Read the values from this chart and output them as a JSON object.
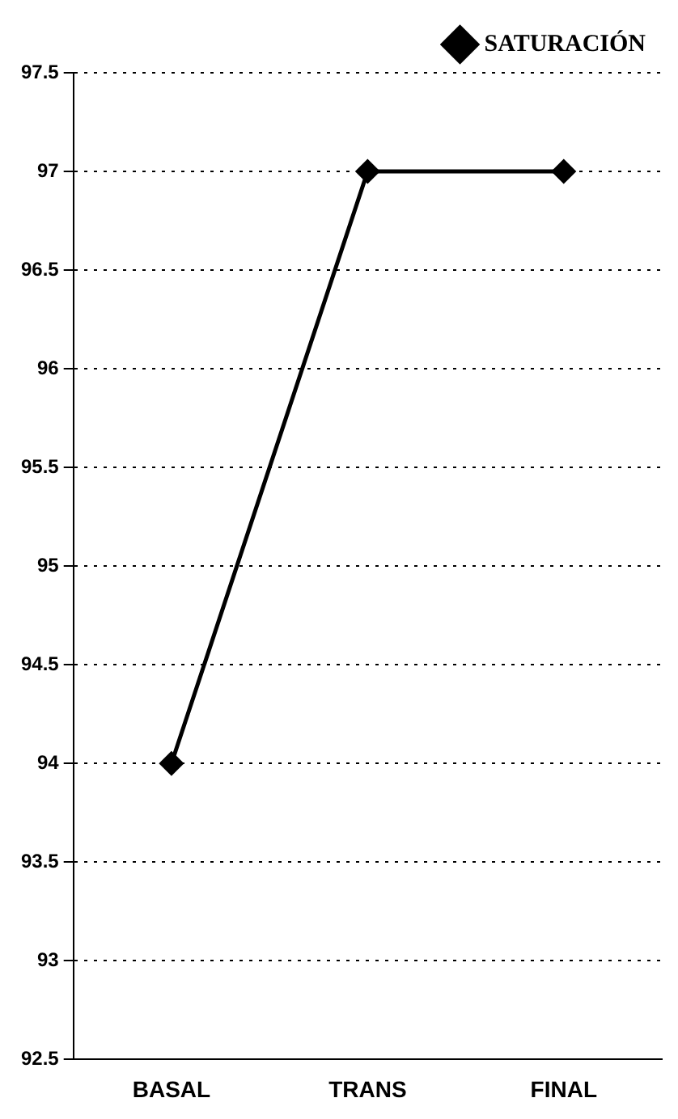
{
  "chart_data": {
    "type": "line",
    "categories": [
      "BASAL",
      "TRANS",
      "FINAL"
    ],
    "series": [
      {
        "name": "SATURACIÓN",
        "color": "#000000",
        "values": [
          94,
          97,
          97
        ]
      }
    ],
    "ylim": [
      92.5,
      97.5
    ],
    "yticks": [
      92.5,
      93,
      93.5,
      94,
      94.5,
      95,
      95.5,
      96,
      96.5,
      97,
      97.5
    ],
    "grid": "y",
    "legend": "top right",
    "marker": "diamond",
    "line_style": "solid"
  }
}
